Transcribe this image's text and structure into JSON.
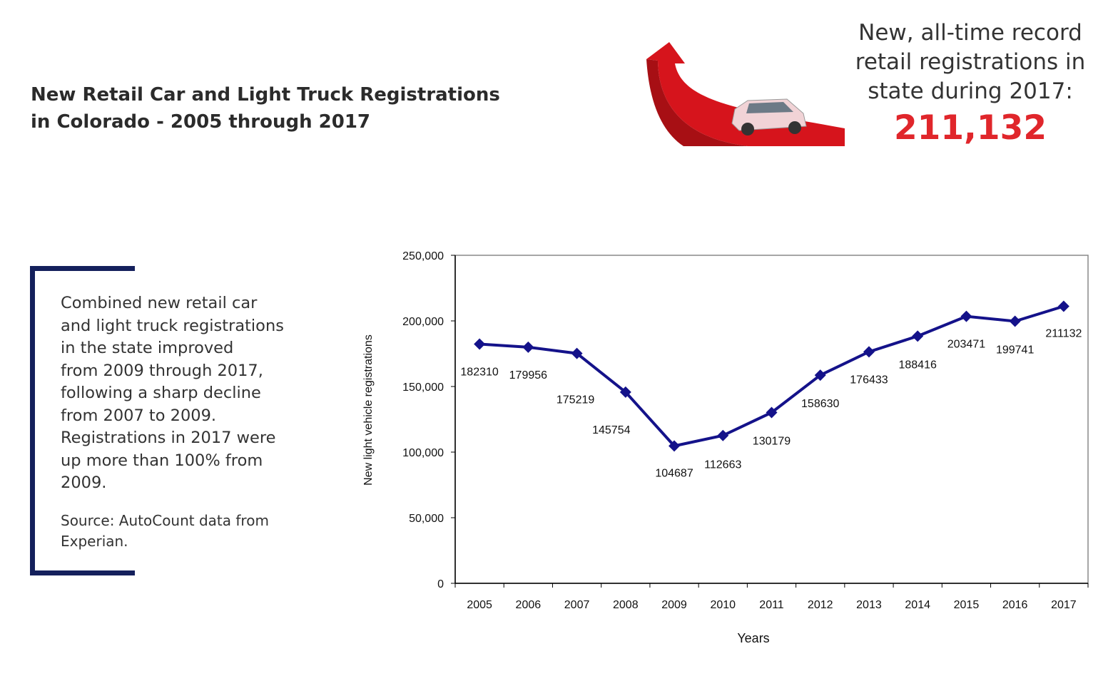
{
  "header": {
    "title": [
      "New Retail Car and Light Truck Registrations",
      "in Colorado - 2005 through 2017"
    ]
  },
  "callout": {
    "text": [
      "New, all-time record",
      "retail registrations in",
      "state during 2017:"
    ],
    "record": "211,132"
  },
  "summary": {
    "lines": [
      "Combined new retail car",
      "and light truck registrations",
      "in the state improved",
      "from 2009 through 2017,",
      "following a sharp decline",
      "from 2007 to 2009.",
      "Registrations in 2017 were",
      "up more than 100% from",
      "2009."
    ]
  },
  "source": {
    "lines": [
      "Source: AutoCount data from",
      "Experian."
    ]
  },
  "chart_data": {
    "type": "line",
    "x_label": "Years",
    "y_label": "New light vehicle registrations",
    "categories": [
      "2005",
      "2006",
      "2007",
      "2008",
      "2009",
      "2010",
      "2011",
      "2012",
      "2013",
      "2014",
      "2015",
      "2016",
      "2017"
    ],
    "series": [
      {
        "name": "Registrations",
        "color": "#14128a",
        "values": [
          182310,
          179956,
          175219,
          145754,
          104687,
          112663,
          130179,
          158630,
          176433,
          188416,
          203471,
          199741,
          211132
        ]
      }
    ],
    "ylim": [
      0,
      250000
    ],
    "yticks": [
      0,
      {
        "value": 50000,
        "label": "50,000"
      },
      {
        "value": 100000,
        "label": "100,000"
      },
      {
        "value": 150000,
        "label": "150,000"
      },
      {
        "value": 200000,
        "label": "200,000"
      },
      {
        "value": 250000,
        "label": "250,000"
      }
    ]
  }
}
